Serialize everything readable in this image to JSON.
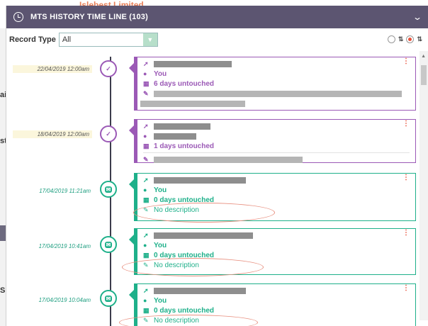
{
  "background": {
    "company_name": "Islebest Limited",
    "left_fragments": [
      "ai",
      "st:",
      "S"
    ]
  },
  "header": {
    "title": "MTS HISTORY TIME LINE (103)",
    "icon": "clock-icon",
    "collapse_icon": "chevron-down-icon"
  },
  "filter": {
    "label": "Record Type",
    "selected": "All",
    "sort_options": [
      "ascending",
      "descending"
    ],
    "sort_selected": "descending"
  },
  "entries": [
    {
      "date": "22/04/2019 12:00am",
      "type": "task",
      "color": "#9b59b6",
      "owner": "You",
      "untouched": "6 days untouched",
      "description": ""
    },
    {
      "date": "18/04/2019 12:00am",
      "type": "task",
      "color": "#9b59b6",
      "owner": "",
      "untouched": "1 days untouched",
      "description": ""
    },
    {
      "date": "17/04/2019 11:21am",
      "type": "email",
      "color": "#1eb08a",
      "owner": "You",
      "untouched": "0 days untouched",
      "description": "No description"
    },
    {
      "date": "17/04/2019 10:41am",
      "type": "email",
      "color": "#1eb08a",
      "owner": "You",
      "untouched": "0 days untouched",
      "description": "No description"
    },
    {
      "date": "17/04/2019 10:04am",
      "type": "email",
      "color": "#1eb08a",
      "owner": "You",
      "untouched": "0 days untouched",
      "description": "No description"
    }
  ]
}
